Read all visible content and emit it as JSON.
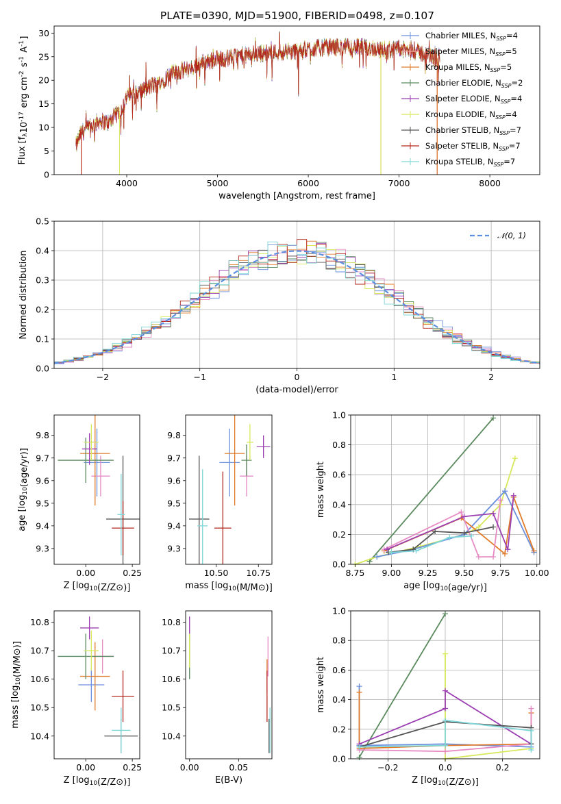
{
  "figure": {
    "title": "PLATE=0390, MJD=51900, FIBERID=0498, z=0.107"
  },
  "chart_data": [
    {
      "id": "spectrum",
      "type": "line",
      "xlabel": "wavelength [Angstrom, rest frame]",
      "ylabel": "Flux [f_λ10^-17 erg cm^-2 s^-1 A^-1]",
      "xlim": [
        3200,
        8550
      ],
      "ylim": [
        0,
        31.5
      ],
      "xticks": [
        4000,
        5000,
        6000,
        7000,
        8000
      ],
      "yticks": [
        0,
        5,
        10,
        15,
        20,
        25,
        30
      ],
      "grid": false,
      "legend_position": "top-right",
      "envelope": {
        "x": [
          3440,
          3500,
          3600,
          3700,
          3800,
          3900,
          3950,
          4000,
          4100,
          4200,
          4300,
          4400,
          4500,
          4600,
          4700,
          4800,
          4900,
          5000,
          5200,
          5400,
          5600,
          5800,
          6000,
          6200,
          6400,
          6600,
          6800,
          7000,
          7200,
          7300,
          7400,
          7450
        ],
        "y": [
          6,
          9,
          10,
          11.5,
          11,
          13,
          14,
          16.5,
          17,
          18,
          19,
          20,
          21.5,
          22,
          22.5,
          23.5,
          24,
          24.5,
          25,
          25.5,
          26,
          26,
          26.5,
          27,
          27,
          27,
          26.5,
          26.5,
          26,
          25.5,
          24.5,
          25
        ]
      },
      "series": [
        {
          "name": "Chabrier MILES, N_SSP=4",
          "color": "#6a8fdd"
        },
        {
          "name": "Salpeter MILES, N_SSP=5",
          "color": "#f1a4a4"
        },
        {
          "name": "Kroupa MILES, N_SSP=5",
          "color": "#e07b2a"
        },
        {
          "name": "Chabrier ELODIE, N_SSP=2",
          "color": "#5a8a5e"
        },
        {
          "name": "Salpeter ELODIE, N_SSP=4",
          "color": "#9b3fb2"
        },
        {
          "name": "Kroupa ELODIE, N_SSP=4",
          "color": "#d7e85a"
        },
        {
          "name": "Chabrier STELIB, N_SSP=7",
          "color": "#555555"
        },
        {
          "name": "Salpeter STELIB, N_SSP=7",
          "color": "#b3261e"
        },
        {
          "name": "Kroupa STELIB, N_SSP=7",
          "color": "#7fd6d8"
        }
      ],
      "legend_labels": [
        {
          "main": "Chabrier MILES, N",
          "sub": "SSP",
          "tail": "=4"
        },
        {
          "main": "Salpeter MILES, N",
          "sub": "SSP",
          "tail": "=5"
        },
        {
          "main": "Kroupa MILES, N",
          "sub": "SSP",
          "tail": "=5"
        },
        {
          "main": "Chabrier ELODIE, N",
          "sub": "SSP",
          "tail": "=2"
        },
        {
          "main": "Salpeter ELODIE, N",
          "sub": "SSP",
          "tail": "=4"
        },
        {
          "main": "Kroupa ELODIE, N",
          "sub": "SSP",
          "tail": "=4"
        },
        {
          "main": "Chabrier STELIB, N",
          "sub": "SSP",
          "tail": "=7"
        },
        {
          "main": "Salpeter STELIB, N",
          "sub": "SSP",
          "tail": "=7"
        },
        {
          "main": "Kroupa STELIB, N",
          "sub": "SSP",
          "tail": "=7"
        }
      ]
    },
    {
      "id": "residuals",
      "type": "line",
      "xlabel": "(data-model)/error",
      "ylabel": "Normed distribution",
      "xlim": [
        -2.5,
        2.5
      ],
      "ylim": [
        0,
        0.5
      ],
      "xticks": [
        -2,
        -1,
        0,
        1,
        2
      ],
      "yticks": [
        0.0,
        0.1,
        0.2,
        0.3,
        0.4,
        0.5
      ],
      "grid": true,
      "legend_position": "top-right",
      "legend_label": "𝒩(0, 1)",
      "normal_color": "#5b8ee0"
    },
    {
      "id": "age_vs_Z",
      "type": "scatter",
      "xlabel": "Z [log10(Z/Z⊙)]",
      "ylabel": "age [log10(age/yr)]",
      "xlim": [
        -0.17,
        0.29
      ],
      "ylim": [
        9.23,
        9.89
      ],
      "xticks": [
        0.0,
        0.25
      ],
      "yticks": [
        9.3,
        9.4,
        9.5,
        9.6,
        9.7,
        9.8
      ],
      "points": [
        {
          "x": 0.06,
          "y": 9.68,
          "xerr": 0.07,
          "yerr": 0.15,
          "color": "#6a8fdd"
        },
        {
          "x": 0.08,
          "y": 9.62,
          "xerr": 0.05,
          "yerr": 0.09,
          "color": "#e68bc4"
        },
        {
          "x": 0.05,
          "y": 9.72,
          "xerr": 0.08,
          "yerr": 0.23,
          "color": "#e07b2a"
        },
        {
          "x": 0.0,
          "y": 9.69,
          "xerr": 0.15,
          "yerr": 0.1,
          "color": "#5a8a5e"
        },
        {
          "x": 0.02,
          "y": 9.74,
          "xerr": 0.04,
          "yerr": 0.07,
          "color": "#9b3fb2"
        },
        {
          "x": 0.03,
          "y": 9.77,
          "xerr": 0.04,
          "yerr": 0.08,
          "color": "#d7e85a"
        },
        {
          "x": 0.2,
          "y": 9.43,
          "xerr": 0.09,
          "yerr": 0.28,
          "color": "#555555"
        },
        {
          "x": 0.2,
          "y": 9.39,
          "xerr": 0.06,
          "yerr": 0.12,
          "color": "#b3261e"
        },
        {
          "x": 0.19,
          "y": 9.45,
          "xerr": 0.02,
          "yerr": 0.18,
          "color": "#7fd6d8"
        }
      ]
    },
    {
      "id": "age_vs_mass",
      "type": "scatter",
      "xlabel": "mass [log10(M/M⊙)]",
      "ylabel": "",
      "xlim": [
        10.32,
        10.83
      ],
      "ylim": [
        9.23,
        9.89
      ],
      "xticks": [
        10.5,
        10.75
      ],
      "yticks": [
        9.3,
        9.4,
        9.5,
        9.6,
        9.7,
        9.8
      ],
      "points": [
        {
          "x": 10.58,
          "y": 9.68,
          "xerr": 0.06,
          "yerr": 0.15,
          "color": "#6a8fdd"
        },
        {
          "x": 10.68,
          "y": 9.62,
          "xerr": 0.04,
          "yerr": 0.09,
          "color": "#e68bc4"
        },
        {
          "x": 10.61,
          "y": 9.72,
          "xerr": 0.06,
          "yerr": 0.23,
          "color": "#e07b2a"
        },
        {
          "x": 10.68,
          "y": 9.69,
          "xerr": 0.03,
          "yerr": 0.07,
          "color": "#5a8a5e"
        },
        {
          "x": 10.78,
          "y": 9.75,
          "xerr": 0.04,
          "yerr": 0.05,
          "color": "#9b3fb2"
        },
        {
          "x": 10.7,
          "y": 9.77,
          "xerr": 0.02,
          "yerr": 0.08,
          "color": "#d7e85a"
        },
        {
          "x": 10.4,
          "y": 9.43,
          "xerr": 0.06,
          "yerr": 0.28,
          "color": "#555555"
        },
        {
          "x": 10.54,
          "y": 9.39,
          "xerr": 0.05,
          "yerr": 0.25,
          "color": "#b3261e"
        },
        {
          "x": 10.42,
          "y": 9.4,
          "xerr": 0.03,
          "yerr": 0.25,
          "color": "#7fd6d8"
        }
      ]
    },
    {
      "id": "mass_weight_vs_age",
      "type": "line",
      "xlabel": "age [log10(age/yr)]",
      "ylabel": "mass weight",
      "xlim": [
        8.72,
        10.02
      ],
      "ylim": [
        0,
        1.0
      ],
      "xticks": [
        8.75,
        9.0,
        9.25,
        9.5,
        9.75,
        10.0
      ],
      "yticks": [
        0.0,
        0.2,
        0.4,
        0.6,
        0.8,
        1.0
      ],
      "grid": true,
      "series": [
        {
          "color": "#5a8a5e",
          "x": [
            8.85,
            9.7
          ],
          "y": [
            0.02,
            0.98
          ]
        },
        {
          "color": "#d7e85a",
          "x": [
            8.75,
            8.9,
            9.2,
            9.5,
            9.6,
            9.75,
            9.85
          ],
          "y": [
            0.0,
            0.05,
            0.12,
            0.2,
            0.25,
            0.4,
            0.71
          ]
        },
        {
          "color": "#6a8fdd",
          "x": [
            8.9,
            9.15,
            9.5,
            9.78,
            9.98
          ],
          "y": [
            0.05,
            0.1,
            0.2,
            0.49,
            0.08
          ]
        },
        {
          "color": "#e07b2a",
          "x": [
            8.95,
            9.48,
            9.78,
            9.84,
            9.98
          ],
          "y": [
            0.09,
            0.31,
            0.07,
            0.45,
            0.09
          ]
        },
        {
          "color": "#e68bc4",
          "x": [
            8.95,
            9.48,
            9.6,
            9.7,
            9.75
          ],
          "y": [
            0.1,
            0.35,
            0.05,
            0.05,
            0.43
          ]
        },
        {
          "color": "#9b3fb2",
          "x": [
            8.97,
            9.5,
            9.7,
            9.8,
            9.84
          ],
          "y": [
            0.1,
            0.32,
            0.34,
            0.1,
            0.46
          ]
        },
        {
          "color": "#555555",
          "x": [
            8.98,
            9.15,
            9.3,
            9.5,
            9.7
          ],
          "y": [
            0.08,
            0.1,
            0.22,
            0.21,
            0.25
          ]
        },
        {
          "color": "#7fd6d8",
          "x": [
            9.0,
            9.17,
            9.4,
            9.55
          ],
          "y": [
            0.08,
            0.09,
            0.18,
            0.19
          ]
        }
      ]
    },
    {
      "id": "mass_vs_Z",
      "type": "scatter",
      "xlabel": "Z [log10(Z/Z⊙)]",
      "ylabel": "mass [log10(M/M⊙)]",
      "xlim": [
        -0.17,
        0.29
      ],
      "ylim": [
        10.32,
        10.84
      ],
      "xticks": [
        0.0,
        0.25
      ],
      "yticks": [
        10.4,
        10.5,
        10.6,
        10.7,
        10.8
      ],
      "points": [
        {
          "x": 0.03,
          "y": 10.58,
          "xerr": 0.07,
          "yerr": 0.06,
          "color": "#6a8fdd"
        },
        {
          "x": 0.09,
          "y": 10.68,
          "xerr": 0.06,
          "yerr": 0.06,
          "color": "#e68bc4"
        },
        {
          "x": 0.05,
          "y": 10.61,
          "xerr": 0.08,
          "yerr": 0.12,
          "color": "#e07b2a"
        },
        {
          "x": 0.0,
          "y": 10.68,
          "xerr": 0.15,
          "yerr": 0.08,
          "color": "#5a8a5e"
        },
        {
          "x": 0.02,
          "y": 10.78,
          "xerr": 0.05,
          "yerr": 0.04,
          "color": "#9b3fb2"
        },
        {
          "x": 0.03,
          "y": 10.7,
          "xerr": 0.04,
          "yerr": 0.07,
          "color": "#d7e85a"
        },
        {
          "x": 0.19,
          "y": 10.4,
          "xerr": 0.09,
          "yerr": 0.06,
          "color": "#555555"
        },
        {
          "x": 0.2,
          "y": 10.54,
          "xerr": 0.06,
          "yerr": 0.09,
          "color": "#b3261e"
        },
        {
          "x": 0.19,
          "y": 10.42,
          "xerr": 0.05,
          "yerr": 0.08,
          "color": "#7fd6d8"
        }
      ]
    },
    {
      "id": "mass_vs_ebv",
      "type": "scatter",
      "xlabel": "E(B-V)",
      "ylabel": "",
      "xlim": [
        -0.004,
        0.084
      ],
      "ylim": [
        10.32,
        10.84
      ],
      "xticks": [
        0.0,
        0.05
      ],
      "yticks": [
        10.4,
        10.5,
        10.6,
        10.7,
        10.8
      ],
      "points": [
        {
          "x": 0.0,
          "y": 10.78,
          "xerr": 0.0,
          "yerr": 0.04,
          "color": "#9b3fb2"
        },
        {
          "x": 0.0,
          "y": 10.68,
          "xerr": 0.0,
          "yerr": 0.08,
          "color": "#5a8a5e"
        },
        {
          "x": 0.0,
          "y": 10.7,
          "xerr": 0.0,
          "yerr": 0.06,
          "color": "#d7e85a"
        },
        {
          "x": 0.079,
          "y": 10.61,
          "xerr": 0.0,
          "yerr": 0.06,
          "color": "#e07b2a"
        },
        {
          "x": 0.079,
          "y": 10.54,
          "xerr": 0.0,
          "yerr": 0.09,
          "color": "#b3261e"
        },
        {
          "x": 0.08,
          "y": 10.68,
          "xerr": 0.0,
          "yerr": 0.07,
          "color": "#e68bc4"
        },
        {
          "x": 0.081,
          "y": 10.4,
          "xerr": 0.0,
          "yerr": 0.06,
          "color": "#555555"
        },
        {
          "x": 0.082,
          "y": 10.42,
          "xerr": 0.0,
          "yerr": 0.08,
          "color": "#7fd6d8"
        }
      ]
    },
    {
      "id": "mass_weight_vs_Z",
      "type": "line",
      "xlabel": "Z [log10(Z/Z⊙)]",
      "ylabel": "mass weight",
      "xlim": [
        -0.33,
        0.33
      ],
      "ylim": [
        0,
        1.0
      ],
      "xticks": [
        -0.2,
        0.0,
        0.2
      ],
      "yticks": [
        0.0,
        0.2,
        0.4,
        0.6,
        0.8,
        1.0
      ],
      "grid": true,
      "series": [
        {
          "color": "#5a8a5e",
          "x": [
            -0.3,
            0.0
          ],
          "y": [
            0.01,
            0.98
          ]
        },
        {
          "color": "#d7e85a",
          "x": [
            0.0,
            0.0,
            0.3
          ],
          "y": [
            0.71,
            0.0,
            0.07
          ]
        },
        {
          "color": "#6a8fdd",
          "x": [
            -0.3,
            -0.3,
            0.0,
            0.3
          ],
          "y": [
            0.49,
            0.09,
            0.1,
            0.08
          ]
        },
        {
          "color": "#e07b2a",
          "x": [
            -0.3,
            -0.3,
            0.0,
            0.3,
            0.3
          ],
          "y": [
            0.45,
            0.07,
            0.09,
            0.1,
            0.31
          ]
        },
        {
          "color": "#e68bc4",
          "x": [
            -0.3,
            0.0,
            0.3,
            0.3
          ],
          "y": [
            0.06,
            0.05,
            0.1,
            0.34
          ]
        },
        {
          "color": "#9b3fb2",
          "x": [
            -0.3,
            0.0,
            0.0,
            0.3
          ],
          "y": [
            0.1,
            0.34,
            0.46,
            0.1
          ]
        },
        {
          "color": "#555555",
          "x": [
            -0.3,
            0.0,
            0.3,
            0.3
          ],
          "y": [
            0.08,
            0.25,
            0.21,
            0.1
          ]
        },
        {
          "color": "#7fd6d8",
          "x": [
            -0.3,
            0.0,
            0.0,
            0.3,
            0.3
          ],
          "y": [
            0.08,
            0.09,
            0.26,
            0.19,
            0.06
          ]
        }
      ]
    }
  ]
}
